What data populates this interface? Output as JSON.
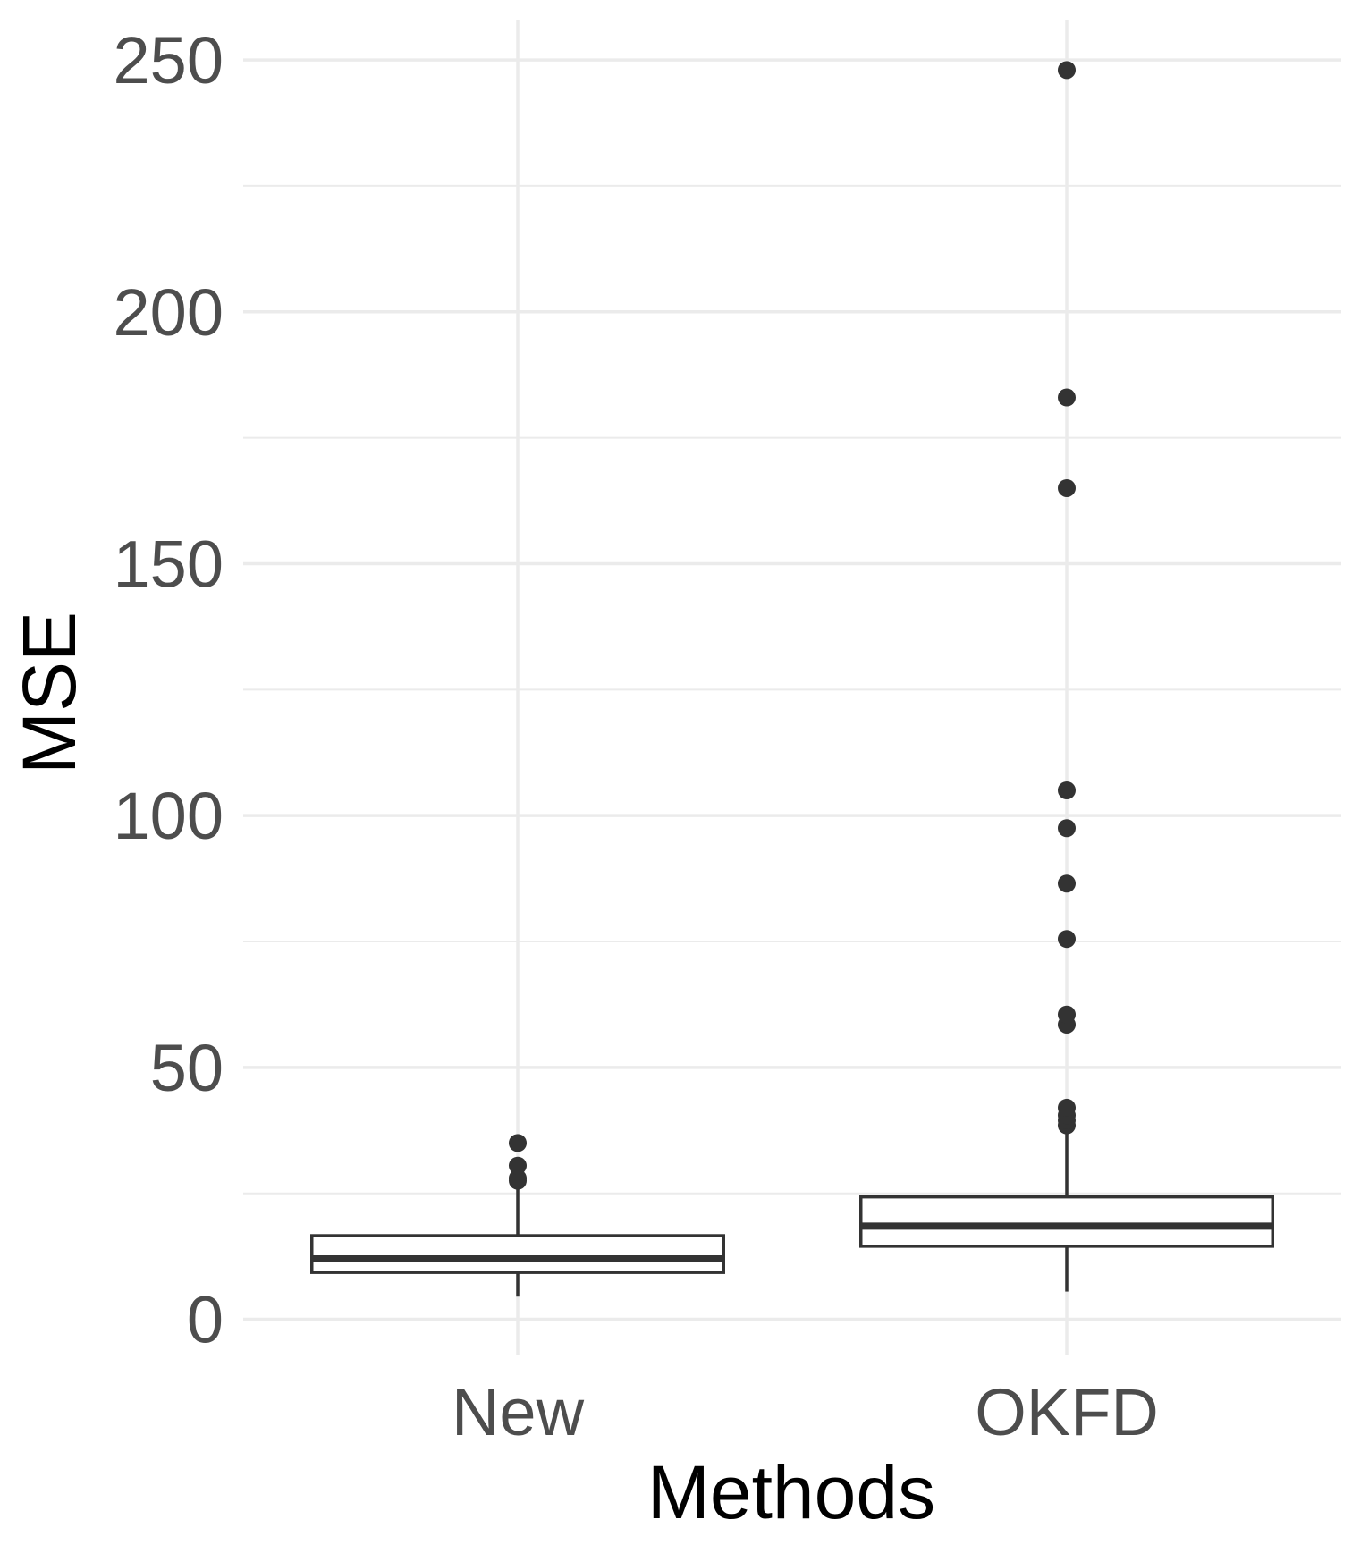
{
  "chart_data": {
    "type": "box",
    "title": "",
    "xlabel": "Methods",
    "ylabel": "MSE",
    "categories": [
      "New",
      "OKFD"
    ],
    "ylim": [
      -7,
      258
    ],
    "yticks": [
      0,
      50,
      100,
      150,
      200,
      250
    ],
    "grid": true,
    "series": [
      {
        "category": "New",
        "whisker_low": 4.5,
        "q1": 9.3,
        "median": 12.0,
        "q3": 16.6,
        "whisker_high": 27.5,
        "outliers": [
          27.5,
          28.0,
          30.5,
          35.0
        ]
      },
      {
        "category": "OKFD",
        "whisker_low": 5.5,
        "q1": 14.5,
        "median": 18.5,
        "q3": 24.3,
        "whisker_high": 38.0,
        "outliers": [
          38.5,
          39.5,
          40.5,
          42.0,
          58.5,
          60.5,
          75.5,
          86.5,
          97.5,
          105.0,
          165.0,
          183.0,
          248.0
        ]
      }
    ],
    "colors": {
      "box_stroke": "#333333",
      "box_fill": "#ffffff",
      "grid": "#ebebeb",
      "tick_text": "#4d4d4d",
      "title_text": "#000000"
    }
  }
}
